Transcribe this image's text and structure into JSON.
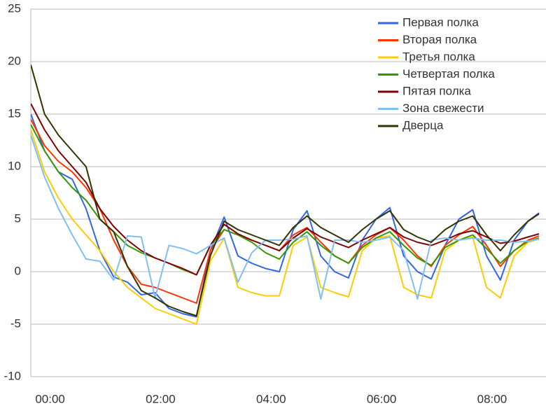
{
  "chart_data": {
    "type": "line",
    "x": [
      -0.35,
      -0.1,
      0.15,
      0.4,
      0.65,
      0.9,
      1.15,
      1.4,
      1.65,
      1.9,
      2.15,
      2.4,
      2.65,
      2.9,
      3.15,
      3.4,
      3.65,
      3.9,
      4.15,
      4.4,
      4.65,
      4.9,
      5.15,
      5.4,
      5.65,
      5.9,
      6.15,
      6.4,
      6.65,
      6.9,
      7.15,
      7.4,
      7.65,
      7.9,
      8.15,
      8.4,
      8.65,
      8.85
    ],
    "xlim": [
      -0.35,
      8.85
    ],
    "xticks": [
      {
        "value": 0,
        "label": "00:00"
      },
      {
        "value": 2,
        "label": "02:00"
      },
      {
        "value": 4,
        "label": "04:00"
      },
      {
        "value": 6,
        "label": "06:00"
      },
      {
        "value": 8,
        "label": "08:00"
      }
    ],
    "ylim": [
      -10,
      25
    ],
    "yticks": [
      -10,
      -5,
      0,
      5,
      10,
      15,
      20,
      25
    ],
    "grid": true,
    "legend": "top-right",
    "series": [
      {
        "name": "Первая полка",
        "color": "#3366e6",
        "values": [
          15,
          11.5,
          9.5,
          8.8,
          6,
          2,
          -0.5,
          -1,
          -2.2,
          -2,
          -3.5,
          -4,
          -4.3,
          2,
          5.2,
          1.5,
          0.8,
          0.3,
          0,
          4,
          5.8,
          1.5,
          0,
          -0.6,
          3,
          5,
          6.1,
          1.5,
          0,
          -0.7,
          2.5,
          5,
          5.9,
          1.5,
          -0.8,
          3,
          4.8,
          5.6
        ]
      },
      {
        "name": "Вторая полка",
        "color": "#ff3300",
        "values": [
          14.5,
          12,
          10.5,
          9.5,
          8,
          6,
          3,
          0.5,
          -1.2,
          -1.5,
          -2,
          -2.5,
          -3,
          2,
          4,
          3.5,
          3,
          2.5,
          2,
          3.5,
          4.2,
          2.8,
          1.5,
          0.8,
          2.5,
          3.5,
          4.2,
          3,
          1.5,
          0.5,
          2.5,
          3.5,
          4.3,
          2.5,
          0.5,
          2,
          3,
          3.4
        ]
      },
      {
        "name": "Третья полка",
        "color": "#ffcc00",
        "values": [
          13.5,
          9.5,
          7,
          5,
          3.5,
          2,
          0,
          -1.5,
          -2.5,
          -3.5,
          -4,
          -4.5,
          -5,
          1,
          3.2,
          -1.5,
          -2,
          -2.3,
          -2.3,
          2.5,
          3.3,
          -1.5,
          -2,
          -2.4,
          2,
          3.2,
          3.4,
          -1.5,
          -2.2,
          -2.5,
          2,
          3,
          3.3,
          -1.5,
          -2.5,
          1.5,
          2.8,
          3.1
        ]
      },
      {
        "name": "Четвертая полка",
        "color": "#339900",
        "values": [
          14,
          11.5,
          9.5,
          8,
          6.8,
          5,
          3.8,
          2.5,
          1.8,
          1.3,
          0.8,
          0.2,
          -0.3,
          2.5,
          4,
          3.5,
          2.8,
          1.8,
          1.2,
          2.8,
          3.8,
          2.5,
          1.5,
          0.8,
          2.3,
          3.2,
          3.8,
          2.5,
          1.3,
          0.6,
          2.3,
          3,
          3.5,
          2.2,
          0.8,
          2,
          2.9,
          3.2
        ]
      },
      {
        "name": "Пятая полка",
        "color": "#800000",
        "values": [
          16,
          13.5,
          11.5,
          10,
          8.5,
          6,
          4.3,
          3,
          2,
          1.3,
          0.8,
          0.3,
          -0.3,
          2.5,
          4.5,
          3.6,
          3,
          2.5,
          2,
          3.2,
          4.1,
          3.3,
          2.8,
          2.3,
          3,
          3.6,
          4.2,
          3.3,
          2.8,
          2.5,
          3,
          3.6,
          3.9,
          3.3,
          2.7,
          2.9,
          3.3,
          3.6
        ]
      },
      {
        "name": "Зона свежести",
        "color": "#80c0f0",
        "values": [
          13,
          9,
          6,
          3.5,
          1.2,
          1,
          -0.8,
          3.4,
          3.3,
          -2.5,
          2.5,
          2.2,
          1.7,
          2.5,
          3.2,
          -1,
          1.8,
          3,
          3,
          3.1,
          3.4,
          -2.6,
          3,
          3,
          2.8,
          3,
          3.3,
          2,
          -2.6,
          3,
          3.2,
          3,
          3.2,
          3,
          3,
          2.8,
          2.9,
          3.1
        ]
      },
      {
        "name": "Дверца",
        "color": "#333300",
        "values": [
          19.7,
          15,
          13,
          11.5,
          10,
          5,
          3.8,
          0.5,
          -1.8,
          -2.5,
          -3.3,
          -3.8,
          -4.2,
          1.5,
          4.8,
          4,
          3.5,
          3,
          2.5,
          4.2,
          5.3,
          4.2,
          3.5,
          2.8,
          4,
          5,
          5.8,
          4,
          3.3,
          2.8,
          4,
          4.8,
          5.3,
          3.5,
          2,
          3.5,
          4.8,
          5.5
        ]
      }
    ]
  }
}
